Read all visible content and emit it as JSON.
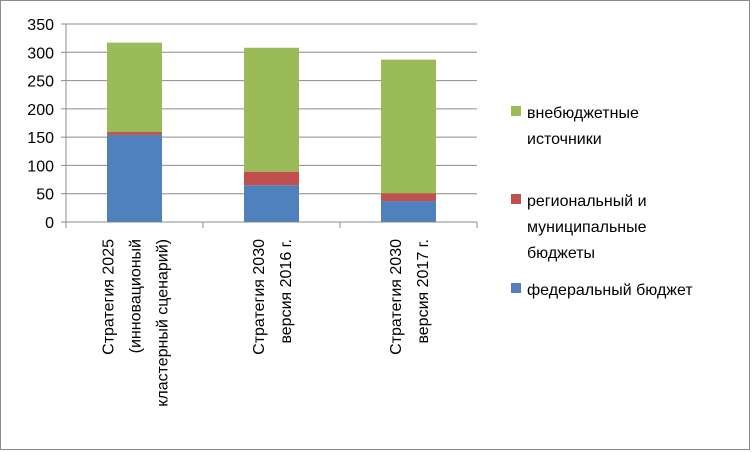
{
  "chart_data": {
    "type": "bar",
    "stacked": true,
    "categories": [
      [
        "Стратегия  2025",
        "(инновационый",
        "кластерный сценарий)"
      ],
      [
        "Стратегия 2030",
        "версия 2016 г."
      ],
      [
        "Стратегия 2030",
        "версия 2017 г."
      ]
    ],
    "series": [
      {
        "name": "федеральный бюджет",
        "values": [
          154,
          65,
          37
        ],
        "color": "#4f81bd"
      },
      {
        "name": "региональный и муниципальные бюджеты",
        "values": [
          5,
          24,
          14
        ],
        "color": "#c0504d"
      },
      {
        "name": "внебюджетные источники",
        "values": [
          158,
          219,
          236
        ],
        "color": "#9bbb59"
      }
    ],
    "legend_lines": [
      [
        "внебюджетные",
        "источники"
      ],
      [
        "региональный и",
        "муниципальные",
        "бюджеты"
      ],
      [
        "федеральный бюджет"
      ]
    ],
    "ylim": [
      0,
      350
    ],
    "yticks": [
      0,
      50,
      100,
      150,
      200,
      250,
      300,
      350
    ],
    "grid": true,
    "legend_position": "right",
    "title": "",
    "xlabel": "",
    "ylabel": ""
  }
}
